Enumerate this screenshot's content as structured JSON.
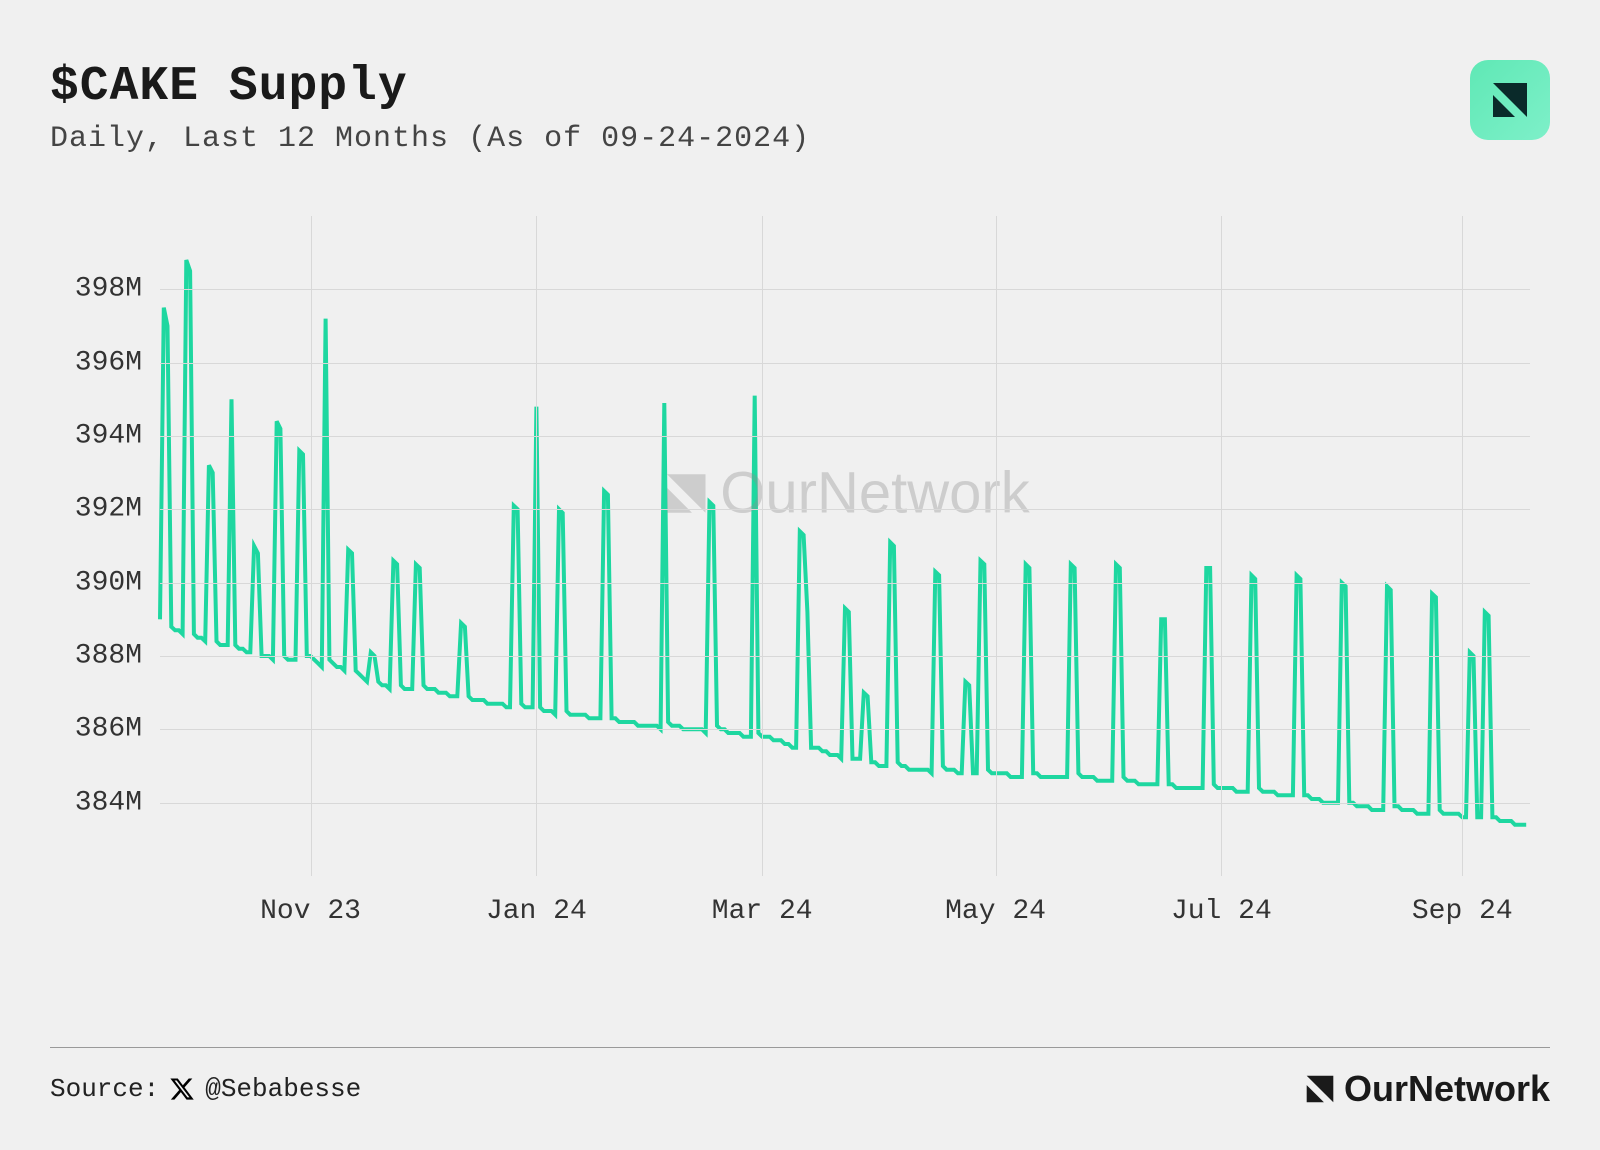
{
  "header": {
    "title": "$CAKE Supply",
    "subtitle": "Daily, Last 12 Months (As of 09-24-2024)"
  },
  "logo": {
    "gradient_from": "#5fe8b5",
    "gradient_to": "#7ef0c9",
    "icon_color": "#0a2a2a"
  },
  "chart": {
    "type": "line",
    "line_color": "#1ed7a0",
    "line_width": 4,
    "background_color": "#f0f0f0",
    "grid_color": "#d8d8d8",
    "label_fontsize": 28,
    "ylim": [
      382,
      400
    ],
    "y_ticks": [
      384,
      386,
      388,
      390,
      392,
      394,
      396,
      398
    ],
    "y_tick_labels": [
      "384M",
      "386M",
      "388M",
      "390M",
      "392M",
      "394M",
      "396M",
      "398M"
    ],
    "x_count": 365,
    "x_ticks": [
      40,
      100,
      160,
      222,
      282,
      346
    ],
    "x_tick_labels": [
      "Nov 23",
      "Jan 24",
      "Mar 24",
      "May 24",
      "Jul 24",
      "Sep 24"
    ],
    "values": [
      389.0,
      397.5,
      397.0,
      388.8,
      388.7,
      388.7,
      388.6,
      398.8,
      398.5,
      388.6,
      388.5,
      388.5,
      388.4,
      393.2,
      393.0,
      388.4,
      388.3,
      388.3,
      388.3,
      395.0,
      388.3,
      388.2,
      388.2,
      388.1,
      388.1,
      391.0,
      390.8,
      388.0,
      388.0,
      388.0,
      387.9,
      394.4,
      394.2,
      388.0,
      387.9,
      387.9,
      387.9,
      393.6,
      393.5,
      388.0,
      388.0,
      387.9,
      387.8,
      387.7,
      397.2,
      387.9,
      387.8,
      387.7,
      387.7,
      387.6,
      390.9,
      390.8,
      387.6,
      387.5,
      387.4,
      387.3,
      388.1,
      388.0,
      387.3,
      387.2,
      387.2,
      387.1,
      390.6,
      390.5,
      387.2,
      387.1,
      387.1,
      387.1,
      390.5,
      390.4,
      387.2,
      387.1,
      387.1,
      387.1,
      387.0,
      387.0,
      387.0,
      386.9,
      386.9,
      386.9,
      388.9,
      388.8,
      386.9,
      386.8,
      386.8,
      386.8,
      386.8,
      386.7,
      386.7,
      386.7,
      386.7,
      386.7,
      386.6,
      386.6,
      392.1,
      392.0,
      386.7,
      386.6,
      386.6,
      386.6,
      394.8,
      386.6,
      386.5,
      386.5,
      386.5,
      386.4,
      392.0,
      391.9,
      386.5,
      386.4,
      386.4,
      386.4,
      386.4,
      386.4,
      386.3,
      386.3,
      386.3,
      386.3,
      392.5,
      392.4,
      386.3,
      386.3,
      386.2,
      386.2,
      386.2,
      386.2,
      386.2,
      386.1,
      386.1,
      386.1,
      386.1,
      386.1,
      386.1,
      386.0,
      394.9,
      386.2,
      386.1,
      386.1,
      386.1,
      386.0,
      386.0,
      386.0,
      386.0,
      386.0,
      386.0,
      385.9,
      392.2,
      392.1,
      386.1,
      386.0,
      386.0,
      385.9,
      385.9,
      385.9,
      385.9,
      385.8,
      385.8,
      385.8,
      395.1,
      385.9,
      385.8,
      385.8,
      385.8,
      385.7,
      385.7,
      385.7,
      385.6,
      385.6,
      385.5,
      385.5,
      391.4,
      391.3,
      389.2,
      385.5,
      385.5,
      385.5,
      385.4,
      385.4,
      385.3,
      385.3,
      385.3,
      385.2,
      389.3,
      389.2,
      385.2,
      385.2,
      385.2,
      387.0,
      386.9,
      385.1,
      385.1,
      385.0,
      385.0,
      385.0,
      391.1,
      391.0,
      385.1,
      385.0,
      385.0,
      384.9,
      384.9,
      384.9,
      384.9,
      384.9,
      384.9,
      384.8,
      390.3,
      390.2,
      385.0,
      384.9,
      384.9,
      384.9,
      384.8,
      384.8,
      387.3,
      387.2,
      384.8,
      384.8,
      390.6,
      390.5,
      384.9,
      384.8,
      384.8,
      384.8,
      384.8,
      384.8,
      384.7,
      384.7,
      384.7,
      384.7,
      390.5,
      390.4,
      384.8,
      384.8,
      384.7,
      384.7,
      384.7,
      384.7,
      384.7,
      384.7,
      384.7,
      384.7,
      390.5,
      390.4,
      384.8,
      384.7,
      384.7,
      384.7,
      384.7,
      384.6,
      384.6,
      384.6,
      384.6,
      384.6,
      390.5,
      390.4,
      384.7,
      384.6,
      384.6,
      384.6,
      384.5,
      384.5,
      384.5,
      384.5,
      384.5,
      384.5,
      389.0,
      389.0,
      384.5,
      384.5,
      384.4,
      384.4,
      384.4,
      384.4,
      384.4,
      384.4,
      384.4,
      384.4,
      390.4,
      390.4,
      384.5,
      384.4,
      384.4,
      384.4,
      384.4,
      384.4,
      384.3,
      384.3,
      384.3,
      384.3,
      390.2,
      390.1,
      384.4,
      384.3,
      384.3,
      384.3,
      384.3,
      384.2,
      384.2,
      384.2,
      384.2,
      384.2,
      390.2,
      390.1,
      384.2,
      384.2,
      384.1,
      384.1,
      384.1,
      384.0,
      384.0,
      384.0,
      384.0,
      384.0,
      390.0,
      389.9,
      384.0,
      384.0,
      383.9,
      383.9,
      383.9,
      383.9,
      383.8,
      383.8,
      383.8,
      383.8,
      389.9,
      389.8,
      383.9,
      383.9,
      383.8,
      383.8,
      383.8,
      383.8,
      383.7,
      383.7,
      383.7,
      383.7,
      389.7,
      389.6,
      383.8,
      383.7,
      383.7,
      383.7,
      383.7,
      383.7,
      383.6,
      383.6,
      388.1,
      388.0,
      383.6,
      383.6,
      389.2,
      389.1,
      383.6,
      383.6,
      383.5,
      383.5,
      383.5,
      383.5,
      383.4,
      383.4,
      383.4,
      383.4
    ]
  },
  "watermark": {
    "text": "OurNetwork",
    "color": "rgba(140,140,140,0.35)"
  },
  "footer": {
    "source_label": "Source:",
    "source_handle": "@Sebabesse",
    "brand": "OurNetwork"
  }
}
